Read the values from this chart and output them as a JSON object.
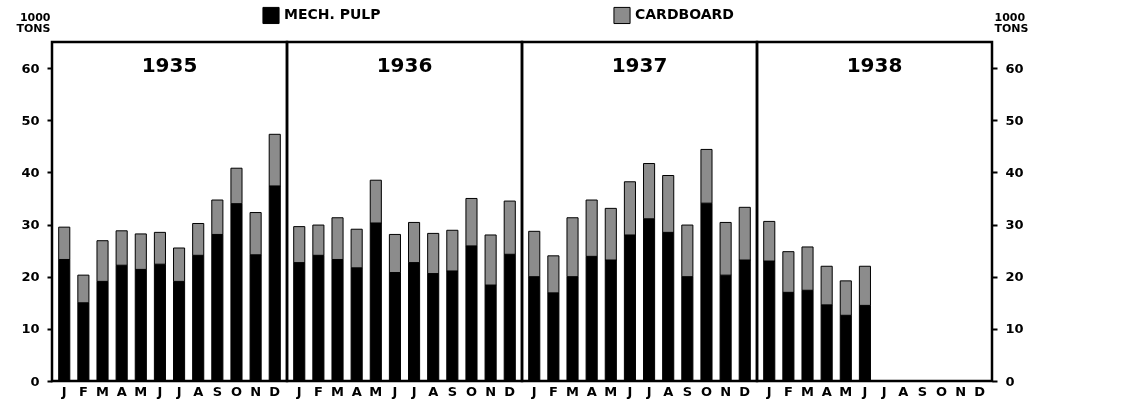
{
  "chart_data": [
    {
      "type": "bar",
      "title": "1935",
      "ylabel": "1000 TONS",
      "stacked": true,
      "legend": "top",
      "categories": [
        "J",
        "F",
        "M",
        "A",
        "M",
        "J",
        "J",
        "A",
        "S",
        "O",
        "N",
        "D"
      ],
      "ylim": [
        0,
        65
      ],
      "yticks": [
        0,
        10,
        20,
        30,
        40,
        50,
        60
      ],
      "series": [
        {
          "name": "MECH. PULP",
          "color": "#000000",
          "values": [
            23.3,
            15,
            19.1,
            22.2,
            21.4,
            22.4,
            19.1,
            24.1,
            28.1,
            34,
            24.2,
            37.4
          ]
        },
        {
          "name": "CARDBOARD",
          "color": "#8c8c8c",
          "values": [
            6.2,
            5.3,
            7.8,
            6.6,
            6.8,
            6.1,
            6.4,
            6.1,
            6.6,
            6.8,
            8.1,
            9.9
          ]
        }
      ]
    },
    {
      "type": "bar",
      "title": "1936",
      "stacked": true,
      "tick_labels": "x",
      "categories": [
        "J",
        "F",
        "M",
        "A",
        "M",
        "J",
        "J",
        "A",
        "S",
        "O",
        "N",
        "D"
      ],
      "ylim": [
        0,
        65
      ],
      "yticks": [
        0,
        10,
        20,
        30,
        40,
        50,
        60
      ],
      "series": [
        {
          "color": "#000000",
          "values": [
            22.7,
            24.1,
            23.3,
            21.7,
            30.3,
            20.8,
            22.7,
            20.6,
            21.1,
            25.9,
            18.4,
            24.3
          ]
        },
        {
          "color": "#8c8c8c",
          "values": [
            6.9,
            5.8,
            8,
            7.4,
            8.2,
            7.3,
            7.7,
            7.7,
            7.8,
            9.1,
            9.6,
            10.2
          ]
        }
      ]
    },
    {
      "type": "bar",
      "title": "1937",
      "stacked": true,
      "tick_labels": "x",
      "categories": [
        "J",
        "F",
        "M",
        "A",
        "M",
        "J",
        "J",
        "A",
        "S",
        "O",
        "N",
        "D"
      ],
      "ylim": [
        0,
        65
      ],
      "yticks": [
        0,
        10,
        20,
        30,
        40,
        50,
        60
      ],
      "series": [
        {
          "color": "#000000",
          "values": [
            20,
            16.9,
            20,
            23.9,
            23.2,
            28,
            31.1,
            28.5,
            20,
            34.1,
            20.3,
            23.2
          ]
        },
        {
          "color": "#8c8c8c",
          "values": [
            8.7,
            7.1,
            11.3,
            10.8,
            9.9,
            10.2,
            10.6,
            10.9,
            9.9,
            10.3,
            10.1,
            10.1
          ]
        }
      ]
    },
    {
      "type": "bar",
      "title": "1938",
      "y2label": "1000 TONS",
      "stacked": true,
      "categories": [
        "J",
        "F",
        "M",
        "A",
        "M",
        "J",
        "J",
        "A",
        "S",
        "O",
        "N",
        "D"
      ],
      "y2lim": [
        0,
        65
      ],
      "y2ticks": [
        0,
        10,
        20,
        30,
        40,
        50,
        60
      ],
      "series": [
        {
          "color": "#000000",
          "axis": "y2",
          "values": [
            23,
            17,
            17.4,
            14.6,
            12.6,
            14.5,
            null,
            null,
            null,
            null,
            null,
            null
          ]
        },
        {
          "color": "#8c8c8c",
          "axis": "y2",
          "values": [
            7.6,
            7.8,
            8.3,
            7.4,
            6.6,
            7.5,
            null,
            null,
            null,
            null,
            null,
            null
          ]
        }
      ]
    }
  ]
}
